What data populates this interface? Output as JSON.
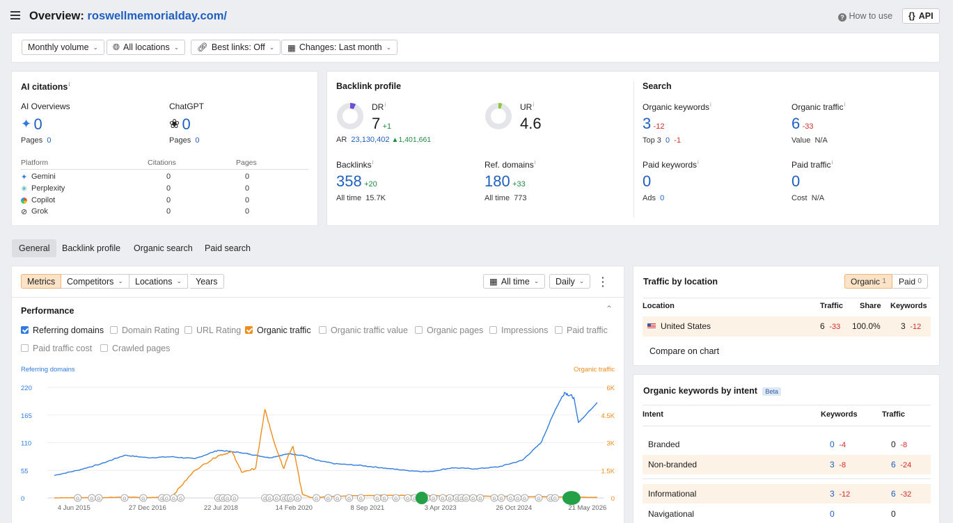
{
  "header": {
    "title_prefix": "Overview:",
    "domain": "roswellmemorialday.com/",
    "how_to_use": "How to use",
    "api": "API"
  },
  "filters": {
    "volume": "Monthly volume",
    "locations": "All locations",
    "best_links": "Best links: Off",
    "changes": "Changes: Last month"
  },
  "ai_citations": {
    "title": "AI citations",
    "ai_overviews": {
      "label": "AI Overviews",
      "value": "0",
      "pages_label": "Pages",
      "pages": "0"
    },
    "chatgpt": {
      "label": "ChatGPT",
      "value": "0",
      "pages_label": "Pages",
      "pages": "0"
    },
    "table_headers": [
      "Platform",
      "Citations",
      "Pages"
    ],
    "platforms": [
      {
        "name": "Gemini",
        "citations": "0",
        "pages": "0"
      },
      {
        "name": "Perplexity",
        "citations": "0",
        "pages": "0"
      },
      {
        "name": "Copilot",
        "citations": "0",
        "pages": "0"
      },
      {
        "name": "Grok",
        "citations": "0",
        "pages": "0"
      }
    ]
  },
  "backlink_profile": {
    "title": "Backlink profile",
    "dr": {
      "label": "DR",
      "value": "7",
      "delta": "+1",
      "fill": 0.07
    },
    "ur": {
      "label": "UR",
      "value": "4.6",
      "fill": 0.046
    },
    "ar_label": "AR",
    "ar": "23,130,402",
    "ar_delta": "1,401,661",
    "backlinks": {
      "label": "Backlinks",
      "value": "358",
      "delta": "+20",
      "sub_label": "All time",
      "sub": "15.7K"
    },
    "ref_domains": {
      "label": "Ref. domains",
      "value": "180",
      "delta": "+33",
      "sub_label": "All time",
      "sub": "773"
    }
  },
  "search": {
    "title": "Search",
    "organic_keywords": {
      "label": "Organic keywords",
      "value": "3",
      "delta": "-12",
      "sub_label": "Top 3",
      "sub": "0",
      "sub_delta": "-1"
    },
    "organic_traffic": {
      "label": "Organic traffic",
      "value": "6",
      "delta": "-33",
      "sub_label": "Value",
      "sub": "N/A"
    },
    "paid_keywords": {
      "label": "Paid keywords",
      "value": "0",
      "sub_label": "Ads",
      "sub": "0"
    },
    "paid_traffic": {
      "label": "Paid traffic",
      "value": "0",
      "sub_label": "Cost",
      "sub": "N/A"
    }
  },
  "tabs": [
    "General",
    "Backlink profile",
    "Organic search",
    "Paid search"
  ],
  "perf": {
    "segs": [
      "Metrics",
      "Competitors",
      "Locations",
      "Years"
    ],
    "all_time": "All time",
    "daily": "Daily",
    "title": "Performance",
    "checkboxes": [
      {
        "label": "Referring domains",
        "on": true
      },
      {
        "label": "Domain Rating",
        "on": false
      },
      {
        "label": "URL Rating",
        "on": false
      },
      {
        "label": "Organic traffic",
        "on": true
      },
      {
        "label": "Organic traffic value",
        "on": false
      },
      {
        "label": "Organic pages",
        "on": false
      },
      {
        "label": "Impressions",
        "on": false
      },
      {
        "label": "Paid traffic",
        "on": false
      },
      {
        "label": "Paid traffic cost",
        "on": false
      },
      {
        "label": "Crawled pages",
        "on": false
      }
    ]
  },
  "chart_data": {
    "type": "line",
    "left_axis_label": "Referring domains",
    "right_axis_label": "Organic traffic",
    "left_ticks": [
      "220",
      "165",
      "110",
      "55",
      "0"
    ],
    "right_ticks": [
      "6K",
      "4.5K",
      "3K",
      "1.5K",
      "0"
    ],
    "ylim_left": [
      0,
      220
    ],
    "ylim_right": [
      0,
      6000
    ],
    "x_ticks": [
      "4 Jun 2015",
      "27 Dec 2016",
      "22 Jul 2018",
      "14 Feb 2020",
      "8 Sep 2021",
      "3 Apr 2023",
      "26 Oct 2024",
      "21 May 2026"
    ],
    "x_years": [
      2015.42,
      2016.99,
      2018.56,
      2020.12,
      2021.69,
      2023.25,
      2024.82,
      2026.39
    ],
    "series": [
      {
        "name": "Referring domains",
        "color": "#2f7be0",
        "axis": "left",
        "x": [
          2015.0,
          2015.5,
          2016.0,
          2016.5,
          2017.0,
          2017.5,
          2018.0,
          2018.5,
          2019.0,
          2019.3,
          2019.6,
          2020.0,
          2020.3,
          2020.6,
          2021.0,
          2021.5,
          2022.0,
          2022.5,
          2023.0,
          2023.5,
          2024.0,
          2024.5,
          2025.0,
          2025.4,
          2025.7,
          2025.9,
          2026.1,
          2026.2,
          2026.4,
          2026.6
        ],
        "y": [
          45,
          55,
          68,
          85,
          80,
          82,
          78,
          95,
          90,
          85,
          80,
          88,
          85,
          75,
          68,
          65,
          60,
          55,
          52,
          60,
          58,
          62,
          75,
          110,
          175,
          210,
          200,
          150,
          170,
          190
        ]
      },
      {
        "name": "Organic traffic",
        "color": "#f08c1a",
        "axis": "right",
        "x": [
          2015.0,
          2015.5,
          2016.0,
          2016.5,
          2017.0,
          2017.5,
          2018.0,
          2018.5,
          2018.8,
          2019.0,
          2019.3,
          2019.5,
          2019.7,
          2019.9,
          2020.0,
          2020.1,
          2020.3,
          2020.5,
          2021.0,
          2022.0,
          2023.0,
          2024.0,
          2025.0,
          2026.0,
          2026.6
        ],
        "y": [
          0,
          20,
          20,
          50,
          20,
          50,
          1500,
          2300,
          2500,
          1400,
          1600,
          4800,
          3000,
          1600,
          2300,
          2800,
          200,
          10,
          100,
          150,
          130,
          100,
          80,
          50,
          30
        ]
      }
    ]
  },
  "traffic_by_location": {
    "title": "Traffic by location",
    "organic_label": "Organic",
    "organic_count": "1",
    "paid_label": "Paid",
    "paid_count": "0",
    "headers": [
      "Location",
      "Traffic",
      "Share",
      "Keywords"
    ],
    "rows": [
      {
        "location": "United States",
        "traffic": "6",
        "traffic_delta": "-33",
        "share": "100.0%",
        "keywords": "3",
        "keywords_delta": "-12"
      }
    ],
    "compare": "Compare on chart"
  },
  "intent": {
    "title": "Organic keywords by intent",
    "beta": "Beta",
    "headers": [
      "Intent",
      "Keywords",
      "Traffic"
    ],
    "rows": [
      {
        "intent": "Branded",
        "keywords": "0",
        "kw_delta": "-4",
        "traffic": "0",
        "tr_delta": "-8",
        "hl": false
      },
      {
        "intent": "Non-branded",
        "keywords": "3",
        "kw_delta": "-8",
        "traffic": "6",
        "tr_delta": "-24",
        "hl": true
      },
      {
        "intent": "Informational",
        "keywords": "3",
        "kw_delta": "-12",
        "traffic": "6",
        "tr_delta": "-32",
        "hl": true
      },
      {
        "intent": "Navigational",
        "keywords": "0",
        "kw_delta": "",
        "traffic": "0",
        "tr_delta": "",
        "hl": false
      }
    ]
  },
  "colors": {
    "accent_blue": "#1f5fbf",
    "orange": "#f08c1a",
    "green": "#1e8a3e",
    "red": "#d42a2a"
  }
}
